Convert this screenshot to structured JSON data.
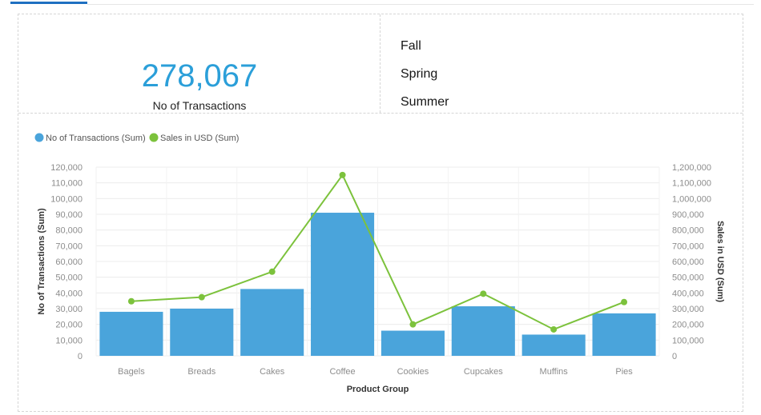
{
  "kpi": {
    "value": "278,067",
    "label": "No of Transactions"
  },
  "seasons": [
    "Fall",
    "Spring",
    "Summer"
  ],
  "colors": {
    "bars": "#4aa4db",
    "line": "#7cc23c",
    "kpi_value": "#2b9fd9"
  },
  "chart_data": {
    "type": "bar",
    "categories": [
      "Bagels",
      "Breads",
      "Cakes",
      "Coffee",
      "Cookies",
      "Cupcakes",
      "Muffins",
      "Pies"
    ],
    "series": [
      {
        "name": "No of Transactions (Sum)",
        "type": "bar",
        "axis": "left",
        "values": [
          28000,
          30000,
          42500,
          91000,
          16000,
          31500,
          13500,
          27000
        ]
      },
      {
        "name": "Sales in USD (Sum)",
        "type": "line",
        "axis": "right",
        "values": [
          347000,
          373000,
          535000,
          1150000,
          200000,
          395000,
          168000,
          342000
        ]
      }
    ],
    "xlabel": "Product Group",
    "ylabel": "No of Transactions (Sum)",
    "y2label": "Sales in USD (Sum)",
    "ylim": [
      0,
      120000
    ],
    "y2lim": [
      0,
      1200000
    ],
    "yticks": [
      "0",
      "10,000",
      "20,000",
      "30,000",
      "40,000",
      "50,000",
      "60,000",
      "70,000",
      "80,000",
      "90,000",
      "100,000",
      "110,000",
      "120,000"
    ],
    "y2ticks": [
      "0",
      "100,000",
      "200,000",
      "300,000",
      "400,000",
      "500,000",
      "600,000",
      "700,000",
      "800,000",
      "900,000",
      "1,000,000",
      "1,100,000",
      "1,200,000"
    ],
    "grid": true,
    "legend": "top-left"
  }
}
